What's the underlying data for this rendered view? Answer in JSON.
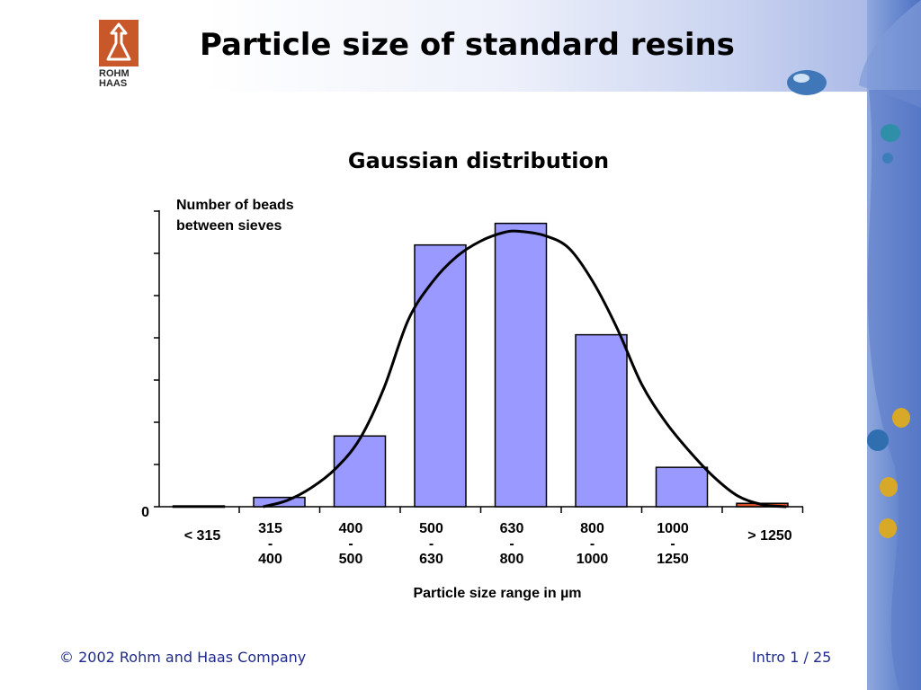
{
  "slide": {
    "title": "Particle size of standard resins",
    "logo_line1": "ROHM",
    "logo_line2": "HAAS"
  },
  "footer": {
    "copyright": "© 2002 Rohm and Haas Company",
    "page": "Intro 1 /  25"
  },
  "colors": {
    "bar_fill": "#9999ff",
    "last_bar_fill": "#d9502a",
    "curve": "#000000",
    "footer_text": "#1f2a8c",
    "logo": "#c8582a"
  },
  "chart_data": {
    "type": "bar",
    "title": "Gaussian distribution",
    "ylabel": "Number of beads between sieves",
    "xlabel": "Particle size range in µm",
    "y_tick_label": "0",
    "ylim": [
      0,
      70
    ],
    "categories": [
      [
        "< 315"
      ],
      [
        "315",
        "-",
        "400"
      ],
      [
        "400",
        "-",
        "500"
      ],
      [
        "500",
        "-",
        "630"
      ],
      [
        "630",
        "-",
        "800"
      ],
      [
        "800",
        "-",
        "1000"
      ],
      [
        "1000",
        "-",
        "1250"
      ],
      [
        "> 1250"
      ]
    ],
    "values": [
      0.2,
      2.2,
      16.7,
      61.8,
      66.9,
      40.6,
      9.3,
      0.8
    ],
    "gaussian_curve": {
      "x_index": [
        0.8,
        1.1,
        1.4,
        1.7,
        2.0,
        2.3,
        2.6,
        2.9,
        3.2,
        3.5,
        3.8,
        4.0,
        4.3,
        4.6,
        4.9,
        5.2,
        5.5,
        5.8,
        6.1,
        6.4,
        6.7,
        7.0,
        7.3
      ],
      "y": [
        0,
        1.5,
        4.5,
        9,
        16,
        28,
        44,
        53,
        59,
        62.7,
        64.8,
        65,
        64,
        61,
        53,
        42,
        29,
        20,
        13,
        7,
        2.5,
        0.5,
        0
      ]
    },
    "grid": false,
    "legend": "none"
  }
}
